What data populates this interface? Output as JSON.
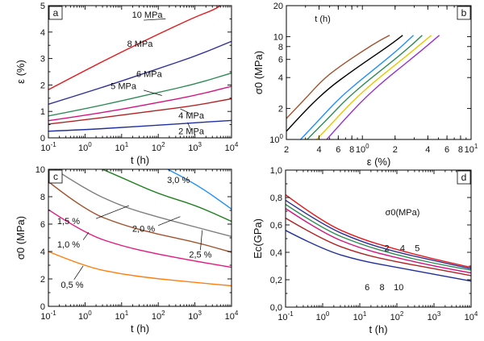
{
  "chart_data": [
    {
      "id": "a",
      "panel_label": "a",
      "type": "line",
      "xscale": "log",
      "xlim": [
        0.1,
        10000
      ],
      "ylim": [
        0,
        5
      ],
      "xlabel": "t (h)",
      "ylabel": "ε (%)",
      "xticks": [
        {
          "v": 0.1,
          "b": "10",
          "e": "-1"
        },
        {
          "v": 1,
          "b": "10",
          "e": "0"
        },
        {
          "v": 10,
          "b": "10",
          "e": "1"
        },
        {
          "v": 100,
          "b": "10",
          "e": "2"
        },
        {
          "v": 1000,
          "b": "10",
          "e": "3"
        },
        {
          "v": 10000,
          "b": "10",
          "e": "4"
        }
      ],
      "yticks": [
        {
          "v": 0,
          "t": "0"
        },
        {
          "v": 1,
          "t": "1"
        },
        {
          "v": 2,
          "t": "2"
        },
        {
          "v": 3,
          "t": "3"
        },
        {
          "v": 4,
          "t": "4"
        },
        {
          "v": 5,
          "t": "5"
        }
      ],
      "series": [
        {
          "name": "2 MPa",
          "color": "#1f2f9e",
          "x": [
            0.1,
            1,
            10,
            100,
            1000,
            10000
          ],
          "y": [
            0.25,
            0.31,
            0.39,
            0.48,
            0.57,
            0.66
          ]
        },
        {
          "name": "4 MPa",
          "color": "#b22222",
          "x": [
            0.1,
            1,
            10,
            100,
            1000,
            10000
          ],
          "y": [
            0.52,
            0.68,
            0.86,
            1.04,
            1.22,
            1.48
          ]
        },
        {
          "name": "",
          "color": "#d4127e",
          "x": [
            0.1,
            1,
            10,
            100,
            1000,
            10000
          ],
          "y": [
            0.65,
            0.85,
            1.08,
            1.34,
            1.6,
            1.95
          ]
        },
        {
          "name": "5 MPa",
          "color": "#2e8b57",
          "x": [
            0.1,
            1,
            10,
            100,
            1000,
            10000
          ],
          "y": [
            0.83,
            1.1,
            1.4,
            1.72,
            2.03,
            2.45
          ]
        },
        {
          "name": "6 MPa",
          "color": "#303098",
          "x": [
            0.1,
            1,
            10,
            100,
            1000,
            10000
          ],
          "y": [
            1.27,
            1.7,
            2.15,
            2.62,
            3.08,
            3.65
          ]
        },
        {
          "name": "8 MPa",
          "color": "#e31a1c",
          "x": [
            0.1,
            1,
            10,
            100,
            1000,
            3000,
            5000
          ],
          "y": [
            1.82,
            2.55,
            3.25,
            3.92,
            4.57,
            4.82,
            5.0
          ]
        }
      ],
      "labels": [
        {
          "text": "10 MPa",
          "xv": 1.7,
          "yv": 4.55,
          "lx": 1.6,
          "ly": 4.45,
          "px": 2.2,
          "py": 4.5
        },
        {
          "text": "8 MPa",
          "xv": 1.5,
          "yv": 3.45,
          "lx": 1.5,
          "ly": 3.45,
          "px": 1.5,
          "py": 3.45
        },
        {
          "text": "6 MPa",
          "xv": 1.75,
          "yv": 2.3,
          "lx": 1.75,
          "ly": 2.3,
          "px": 1.75,
          "py": 2.3
        },
        {
          "text": "5 MPa",
          "xv": 1.05,
          "yv": 1.85,
          "lx": 1.6,
          "ly": 1.8,
          "px": 2.1,
          "py": 1.6
        },
        {
          "text": "4 MPa",
          "xv": 2.9,
          "yv": 0.73,
          "lx": 2.9,
          "ly": 0.9,
          "px": 2.6,
          "py": 1.1
        },
        {
          "text": "2 MPa",
          "xv": 2.9,
          "yv": 0.13,
          "lx": 2.9,
          "ly": 0.27,
          "px": 2.8,
          "py": 0.58
        }
      ]
    },
    {
      "id": "b",
      "panel_label": "b",
      "type": "line",
      "xscale": "log",
      "yscale": "log",
      "xlim": [
        0.2,
        10
      ],
      "ylim": [
        1,
        20
      ],
      "xlabel": "ε (%)",
      "ylabel": "σ0 (MPa)",
      "legend_title": "t (h)",
      "xticks": [
        {
          "v": 0.2,
          "t": "2"
        },
        {
          "v": 0.4,
          "t": "4"
        },
        {
          "v": 0.6,
          "t": "6"
        },
        {
          "v": 0.8,
          "t": "8"
        },
        {
          "v": 1,
          "b": "10",
          "e": "0"
        },
        {
          "v": 2,
          "t": "2"
        },
        {
          "v": 4,
          "t": "4"
        },
        {
          "v": 6,
          "t": "6"
        },
        {
          "v": 8,
          "t": "8"
        },
        {
          "v": 10,
          "b": "10",
          "e": "1"
        }
      ],
      "yticks": [
        {
          "v": 1,
          "b": "10",
          "e": "0"
        },
        {
          "v": 2,
          "t": "2"
        },
        {
          "v": 4,
          "t": "4"
        },
        {
          "v": 6,
          "t": "6"
        },
        {
          "v": 8,
          "t": "8"
        },
        {
          "v": 10,
          "t": "10"
        },
        {
          "v": 20,
          "t": "20"
        }
      ],
      "series": [
        {
          "name": "10⁻¹",
          "color": "#a0522d",
          "x": [
            0.2,
            0.3,
            0.45,
            0.7,
            1.0,
            1.4,
            1.78
          ],
          "y": [
            1.6,
            2.5,
            4.0,
            5.6,
            7.2,
            9.0,
            10.3
          ]
        },
        {
          "name": "10⁰",
          "color": "#000000",
          "x": [
            0.2,
            0.31,
            0.5,
            0.8,
            1.2,
            1.8,
            2.35
          ],
          "y": [
            1.2,
            2.0,
            3.2,
            4.6,
            6.2,
            8.3,
            10.3
          ]
        },
        {
          "name": "10¹",
          "color": "#1e90ff",
          "x": [
            0.27,
            0.4,
            0.62,
            1.0,
            1.5,
            2.2,
            2.95
          ],
          "y": [
            1.0,
            1.55,
            2.55,
            3.9,
            5.5,
            7.7,
            10.3
          ]
        },
        {
          "name": "10²",
          "color": "#2e8b57",
          "x": [
            0.31,
            0.47,
            0.72,
            1.15,
            1.75,
            2.6,
            3.55
          ],
          "y": [
            1.0,
            1.55,
            2.5,
            3.8,
            5.4,
            7.6,
            10.3
          ]
        },
        {
          "name": "10³",
          "color": "#e8c800",
          "x": [
            0.38,
            0.56,
            0.86,
            1.35,
            2.05,
            3.05,
            4.3
          ],
          "y": [
            1.0,
            1.55,
            2.5,
            3.8,
            5.4,
            7.6,
            10.3
          ]
        },
        {
          "name": "10⁴",
          "color": "#9932cc",
          "x": [
            0.47,
            0.68,
            1.04,
            1.62,
            2.45,
            3.65,
            5.1
          ],
          "y": [
            1.0,
            1.55,
            2.5,
            3.8,
            5.4,
            7.6,
            10.3
          ]
        }
      ],
      "labels": [
        {
          "b": "10",
          "e": "-1",
          "xv": 1.6,
          "yv": 13.5
        },
        {
          "b": "10",
          "e": "0",
          "xv": 0.75,
          "yv": 7.6
        },
        {
          "b": "10",
          "e": "1",
          "xv": 0.37,
          "yv": 4.4
        },
        {
          "b": "10",
          "e": "2",
          "xv": 6.3,
          "yv": 8.6
        },
        {
          "b": "10",
          "e": "3",
          "xv": 5.9,
          "yv": 5.9
        },
        {
          "b": "10",
          "e": "4",
          "xv": 3.5,
          "yv": 3.1
        }
      ]
    },
    {
      "id": "c",
      "panel_label": "c",
      "type": "line",
      "xscale": "log",
      "xlim": [
        0.1,
        10000
      ],
      "ylim": [
        0,
        10
      ],
      "xlabel": "t (h)",
      "ylabel": "σ0 (MPa)",
      "xticks": [
        {
          "v": 0.1,
          "b": "10",
          "e": "-1"
        },
        {
          "v": 1,
          "b": "10",
          "e": "0"
        },
        {
          "v": 10,
          "b": "10",
          "e": "1"
        },
        {
          "v": 100,
          "b": "10",
          "e": "2"
        },
        {
          "v": 1000,
          "b": "10",
          "e": "3"
        },
        {
          "v": 10000,
          "b": "10",
          "e": "4"
        }
      ],
      "yticks": [
        {
          "v": 0,
          "t": "0"
        },
        {
          "v": 2,
          "t": "2"
        },
        {
          "v": 4,
          "t": "4"
        },
        {
          "v": 6,
          "t": "6"
        },
        {
          "v": 8,
          "t": "8"
        },
        {
          "v": 10,
          "t": "10"
        }
      ],
      "series": [
        {
          "name": "0,5 %",
          "color": "#ff7f0e",
          "x": [
            0.1,
            1,
            10,
            100,
            1000,
            10000
          ],
          "y": [
            4.0,
            2.9,
            2.35,
            2.0,
            1.75,
            1.5
          ]
        },
        {
          "name": "1,0 %",
          "color": "#e6197d",
          "x": [
            0.1,
            1,
            10,
            100,
            1000,
            10000
          ],
          "y": [
            7.05,
            5.3,
            4.4,
            3.8,
            3.3,
            2.85
          ]
        },
        {
          "name": "1,5 %",
          "color": "#a0522d",
          "x": [
            0.1,
            1,
            10,
            100,
            1000,
            10000
          ],
          "y": [
            9.1,
            7.0,
            5.95,
            5.25,
            4.7,
            3.95
          ]
        },
        {
          "name": "2,0 %",
          "color": "#808080",
          "x": [
            0.15,
            1,
            10,
            100,
            1000,
            10000
          ],
          "y": [
            10.0,
            8.55,
            7.3,
            6.5,
            5.8,
            5.1
          ]
        },
        {
          "name": "2,5 %",
          "color": "#1a7f1a",
          "x": [
            3,
            10,
            100,
            1000,
            10000
          ],
          "y": [
            10.0,
            9.4,
            8.2,
            7.4,
            6.2
          ]
        },
        {
          "name": "3,0 %",
          "color": "#1e90ff",
          "x": [
            180,
            1000,
            10000
          ],
          "y": [
            10.0,
            9.0,
            7.1
          ]
        }
      ],
      "labels": [
        {
          "text": "3,0 %",
          "xv": 2.55,
          "yv": 9.0,
          "lx": 2.55,
          "ly": 9.0,
          "px": 2.55,
          "py": 9.0
        },
        {
          "text": "2,0 %",
          "xv": 1.6,
          "yv": 5.45,
          "lx": 2.0,
          "ly": 5.9,
          "px": 2.6,
          "py": 6.55
        },
        {
          "text": "1,5 %",
          "xv": -0.45,
          "yv": 6.0,
          "lx": 0.3,
          "ly": 6.4,
          "px": 1.2,
          "py": 7.35
        },
        {
          "text": "1,0 %",
          "xv": -0.45,
          "yv": 4.3,
          "lx": -0.05,
          "ly": 4.85,
          "px": 0.1,
          "py": 5.4
        },
        {
          "text": "2,5 %",
          "xv": 3.15,
          "yv": 3.55,
          "lx": 3.15,
          "ly": 4.1,
          "px": 3.2,
          "py": 5.55
        },
        {
          "text": "0,5 %",
          "xv": -0.35,
          "yv": 1.35,
          "lx": -0.3,
          "ly": 1.95,
          "px": -0.05,
          "py": 2.95
        }
      ]
    },
    {
      "id": "d",
      "panel_label": "d",
      "type": "line",
      "xscale": "log",
      "xlim": [
        0.1,
        10000
      ],
      "ylim": [
        0,
        1.0
      ],
      "xlabel": "t (h)",
      "ylabel": "Ec(GPa)",
      "legend_title": "σ0(MPa)",
      "xticks": [
        {
          "v": 0.1,
          "b": "10",
          "e": "-1"
        },
        {
          "v": 1,
          "b": "10",
          "e": "0"
        },
        {
          "v": 10,
          "b": "10",
          "e": "1"
        },
        {
          "v": 100,
          "b": "10",
          "e": "2"
        },
        {
          "v": 1000,
          "b": "10",
          "e": "3"
        },
        {
          "v": 10000,
          "b": "10",
          "e": "4"
        }
      ],
      "yticks": [
        {
          "v": 0,
          "t": "0,0"
        },
        {
          "v": 0.2,
          "t": "0,2"
        },
        {
          "v": 0.4,
          "t": "0,4"
        },
        {
          "v": 0.6,
          "t": "0,6"
        },
        {
          "v": 0.8,
          "t": "0,8"
        },
        {
          "v": 1.0,
          "t": "1,0"
        }
      ],
      "series": [
        {
          "name": "2",
          "color": "#e31a1c",
          "x": [
            0.1,
            1,
            10,
            100,
            1000,
            10000
          ],
          "y": [
            0.82,
            0.62,
            0.5,
            0.42,
            0.35,
            0.29
          ]
        },
        {
          "name": "4",
          "color": "#303098",
          "x": [
            0.1,
            1,
            10,
            100,
            1000,
            10000
          ],
          "y": [
            0.78,
            0.6,
            0.48,
            0.4,
            0.34,
            0.28
          ]
        },
        {
          "name": "5",
          "color": "#2e8b57",
          "x": [
            0.1,
            1,
            10,
            100,
            1000,
            10000
          ],
          "y": [
            0.75,
            0.57,
            0.46,
            0.38,
            0.32,
            0.27
          ]
        },
        {
          "name": "6",
          "color": "#d4127e",
          "x": [
            0.1,
            1,
            10,
            100,
            1000,
            10000
          ],
          "y": [
            0.72,
            0.54,
            0.43,
            0.36,
            0.3,
            0.25
          ]
        },
        {
          "name": "8",
          "color": "#b22222",
          "x": [
            0.1,
            1,
            10,
            100,
            1000,
            10000
          ],
          "y": [
            0.65,
            0.49,
            0.39,
            0.33,
            0.28,
            0.23
          ]
        },
        {
          "name": "10",
          "color": "#1f2f9e",
          "x": [
            0.1,
            1,
            10,
            100,
            1000,
            10000
          ],
          "y": [
            0.56,
            0.42,
            0.34,
            0.29,
            0.24,
            0.19
          ]
        }
      ],
      "labels": [
        {
          "text": "2",
          "xv": 1.73,
          "yv": 0.41
        },
        {
          "text": "4",
          "xv": 2.15,
          "yv": 0.41
        },
        {
          "text": "5",
          "xv": 2.55,
          "yv": 0.41
        },
        {
          "text": "6",
          "xv": 1.2,
          "yv": 0.125
        },
        {
          "text": "8",
          "xv": 1.6,
          "yv": 0.125
        },
        {
          "text": "10",
          "xv": 2.05,
          "yv": 0.125
        }
      ]
    }
  ]
}
